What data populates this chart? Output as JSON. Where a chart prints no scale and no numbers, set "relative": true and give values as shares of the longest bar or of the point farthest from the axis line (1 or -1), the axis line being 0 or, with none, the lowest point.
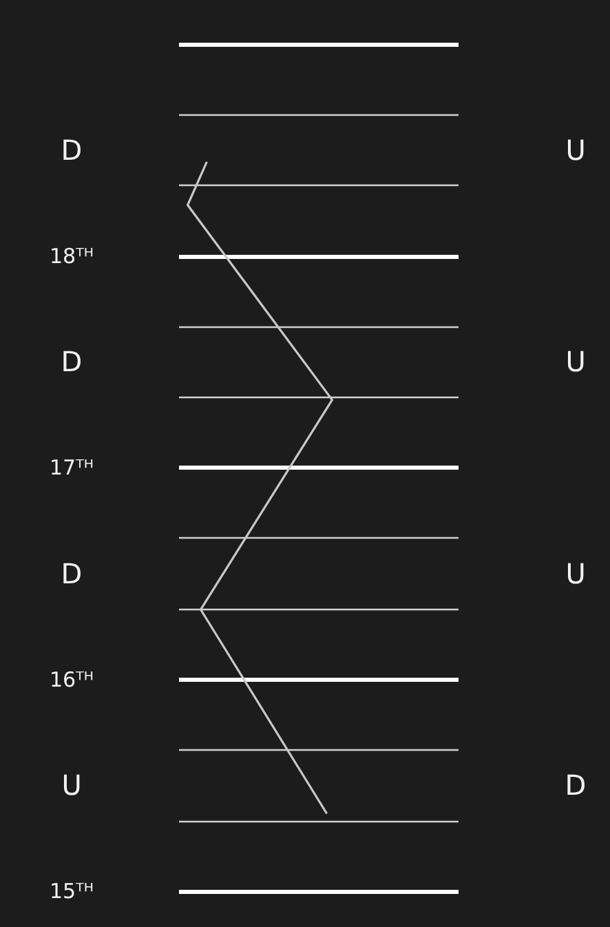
{
  "chart_data": {
    "type": "line",
    "orientation": "horizontal",
    "relative": true,
    "tick_labels": "y",
    "marker": "none",
    "line_style": "solid",
    "grid": "y",
    "x": [
      15.37,
      16.33,
      17.32,
      18.24,
      18.44
    ],
    "series": [
      {
        "color": "#c8c8c8",
        "values": [
          0.96,
          0.09,
          1,
          0,
          0.13
        ]
      }
    ],
    "ylim": [
      15,
      19
    ],
    "yticks": [
      {
        "value": 15,
        "label": "15ᵀᴴ"
      },
      {
        "value": 15.333,
        "label": null
      },
      {
        "value": 15.667,
        "label": null
      },
      {
        "value": 16,
        "label": "16ᵀᴴ"
      },
      {
        "value": 16.333,
        "label": null
      },
      {
        "value": 16.667,
        "label": null
      },
      {
        "value": 17,
        "label": "17ᵀᴴ"
      },
      {
        "value": 17.333,
        "label": null
      },
      {
        "value": 17.667,
        "label": null
      },
      {
        "value": 18,
        "label": "18ᵀᴴ"
      },
      {
        "value": 18.333,
        "label": null
      },
      {
        "value": 18.667,
        "label": null
      },
      {
        "value": 19,
        "label": null
      }
    ],
    "annotations": [
      "D",
      "D",
      "D",
      "U",
      "U",
      "U",
      "U",
      "D"
    ]
  }
}
